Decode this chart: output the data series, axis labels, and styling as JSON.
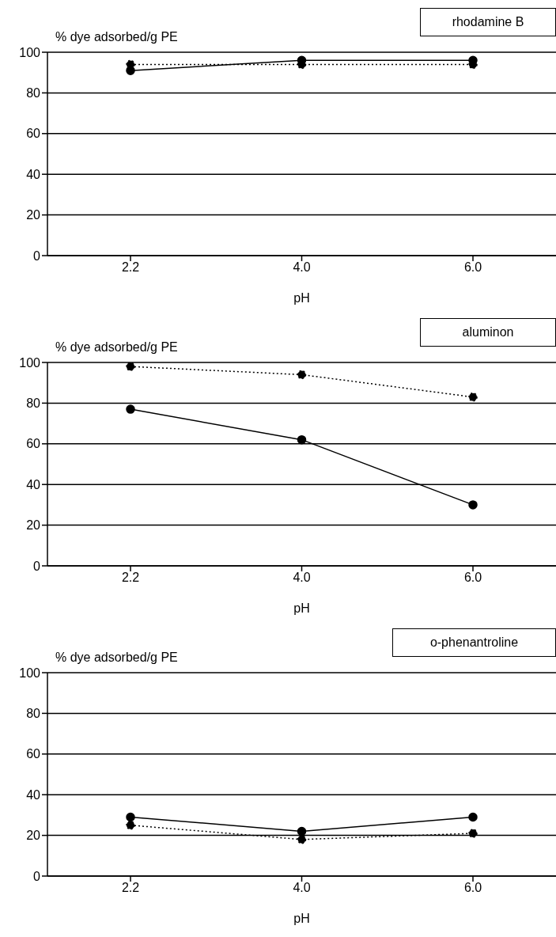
{
  "chart_data": [
    {
      "type": "line",
      "title": "rhodamine B",
      "ylabel": "% dye adsorbed/g PE",
      "xlabel": "pH",
      "categories": [
        "2.2",
        "4.0",
        "6.0"
      ],
      "series": [
        {
          "color": "#000000",
          "line_style": "solid",
          "values": [
            91,
            96,
            96
          ]
        },
        {
          "color": "#000000",
          "line_style": "dotted",
          "values": [
            94,
            94,
            94
          ]
        }
      ],
      "ylim": [
        0,
        100
      ],
      "yticks": [
        0,
        20,
        40,
        60,
        80,
        100
      ],
      "grid": "y",
      "marker": "circle"
    },
    {
      "type": "line",
      "title": "aluminon",
      "ylabel": "% dye adsorbed/g PE",
      "xlabel": "pH",
      "categories": [
        "2.2",
        "4.0",
        "6.0"
      ],
      "series": [
        {
          "color": "#000000",
          "line_style": "solid",
          "values": [
            77,
            62,
            30
          ]
        },
        {
          "color": "#000000",
          "line_style": "dotted",
          "values": [
            98,
            94,
            83
          ]
        }
      ],
      "ylim": [
        0,
        100
      ],
      "yticks": [
        0,
        20,
        40,
        60,
        80,
        100
      ],
      "grid": "y",
      "marker": "circle"
    },
    {
      "type": "line",
      "title": "o-phenantroline",
      "ylabel": "% dye adsorbed/g PE",
      "xlabel": "pH",
      "categories": [
        "2.2",
        "4.0",
        "6.0"
      ],
      "series": [
        {
          "color": "#000000",
          "line_style": "solid",
          "values": [
            29,
            22,
            29
          ]
        },
        {
          "color": "#000000",
          "line_style": "dotted",
          "values": [
            25,
            18,
            21
          ]
        }
      ],
      "ylim": [
        0,
        100
      ],
      "yticks": [
        0,
        20,
        40,
        60,
        80,
        100
      ],
      "grid": "y",
      "marker": "circle"
    }
  ]
}
